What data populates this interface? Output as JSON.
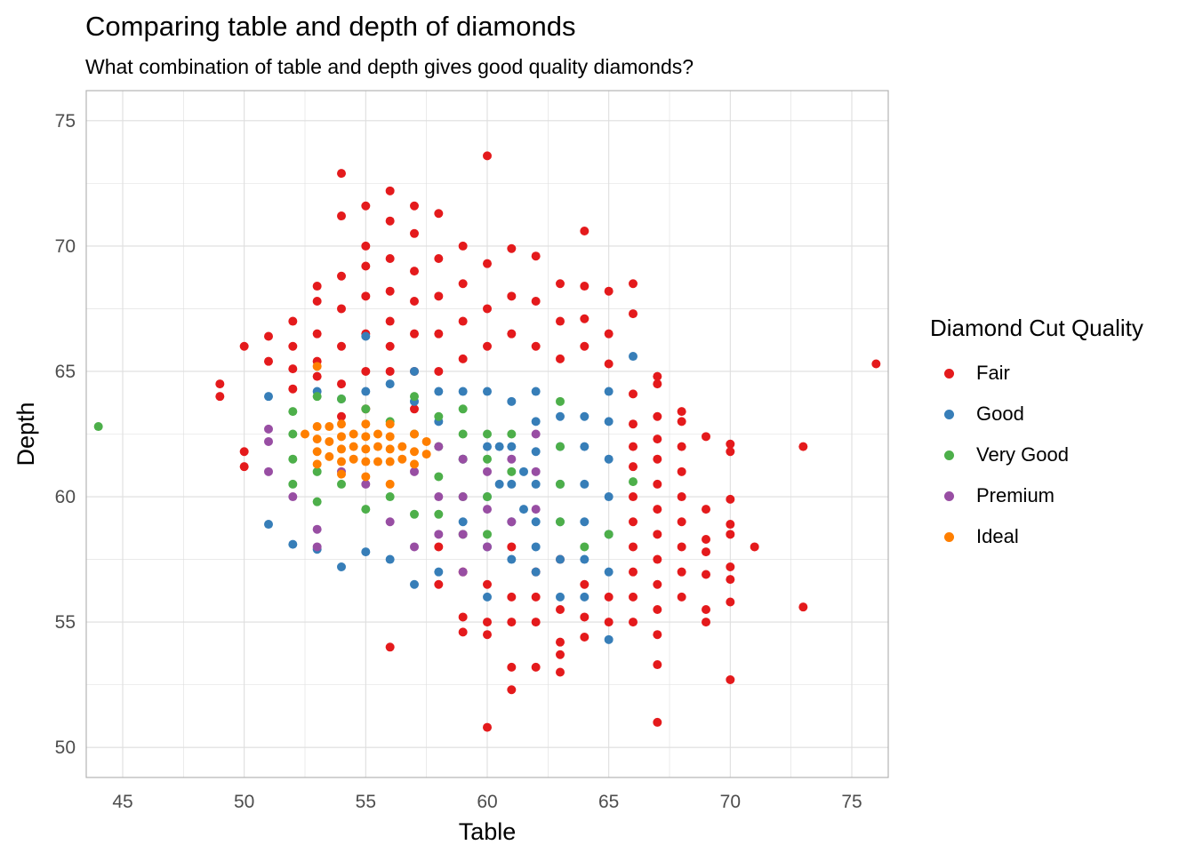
{
  "chart_data": {
    "type": "scatter",
    "title": "Comparing table and depth of diamonds",
    "subtitle": "What combination of table and depth gives good quality diamonds?",
    "xlabel": "Table",
    "ylabel": "Depth",
    "xlim": [
      43.5,
      76.5
    ],
    "ylim": [
      48.8,
      76.2
    ],
    "xticks": [
      45,
      50,
      55,
      60,
      65,
      70,
      75
    ],
    "yticks": [
      50,
      55,
      60,
      65,
      70,
      75
    ],
    "grid": true,
    "legend_title": "Diamond Cut Quality",
    "legend_position": "right",
    "series": [
      {
        "name": "Fair",
        "color": "#E41A1C",
        "points": [
          [
            49,
            64.5
          ],
          [
            49,
            64.0
          ],
          [
            50,
            66.0
          ],
          [
            50,
            61.8
          ],
          [
            50,
            61.2
          ],
          [
            51,
            66.4
          ],
          [
            51,
            65.4
          ],
          [
            52,
            67.0
          ],
          [
            52,
            66.0
          ],
          [
            52,
            65.1
          ],
          [
            52,
            64.3
          ],
          [
            53,
            68.4
          ],
          [
            53,
            67.8
          ],
          [
            53,
            66.5
          ],
          [
            53,
            65.4
          ],
          [
            53,
            64.8
          ],
          [
            54,
            72.9
          ],
          [
            54,
            71.2
          ],
          [
            54,
            68.8
          ],
          [
            54,
            67.5
          ],
          [
            54,
            66.0
          ],
          [
            54,
            64.5
          ],
          [
            54,
            63.2
          ],
          [
            55,
            71.6
          ],
          [
            55,
            70.0
          ],
          [
            55,
            69.2
          ],
          [
            55,
            68.0
          ],
          [
            55,
            66.5
          ],
          [
            55,
            65.0
          ],
          [
            55,
            63.5
          ],
          [
            56,
            72.2
          ],
          [
            56,
            71.0
          ],
          [
            56,
            69.5
          ],
          [
            56,
            68.2
          ],
          [
            56,
            67.0
          ],
          [
            56,
            66.0
          ],
          [
            56,
            65.0
          ],
          [
            56,
            54.0
          ],
          [
            57,
            71.6
          ],
          [
            57,
            70.5
          ],
          [
            57,
            69.0
          ],
          [
            57,
            67.8
          ],
          [
            57,
            66.5
          ],
          [
            57,
            65.0
          ],
          [
            57,
            63.5
          ],
          [
            58,
            71.3
          ],
          [
            58,
            69.5
          ],
          [
            58,
            68.0
          ],
          [
            58,
            66.5
          ],
          [
            58,
            65.0
          ],
          [
            58,
            58.0
          ],
          [
            58,
            56.5
          ],
          [
            59,
            70.0
          ],
          [
            59,
            68.5
          ],
          [
            59,
            67.0
          ],
          [
            59,
            65.5
          ],
          [
            59,
            57.0
          ],
          [
            59,
            55.2
          ],
          [
            59,
            54.6
          ],
          [
            60,
            73.6
          ],
          [
            60,
            69.3
          ],
          [
            60,
            67.5
          ],
          [
            60,
            66.0
          ],
          [
            60,
            56.5
          ],
          [
            60,
            55.0
          ],
          [
            60,
            54.5
          ],
          [
            60,
            50.8
          ],
          [
            61,
            69.9
          ],
          [
            61,
            68.0
          ],
          [
            61,
            66.5
          ],
          [
            61,
            58.0
          ],
          [
            61,
            56.0
          ],
          [
            61,
            55.0
          ],
          [
            61,
            53.2
          ],
          [
            61,
            52.3
          ],
          [
            62,
            69.6
          ],
          [
            62,
            67.8
          ],
          [
            62,
            66.0
          ],
          [
            62,
            57.0
          ],
          [
            62,
            56.0
          ],
          [
            62,
            55.0
          ],
          [
            62,
            53.2
          ],
          [
            63,
            68.5
          ],
          [
            63,
            67.0
          ],
          [
            63,
            65.5
          ],
          [
            63,
            57.5
          ],
          [
            63,
            55.5
          ],
          [
            63,
            54.2
          ],
          [
            63,
            53.7
          ],
          [
            63,
            53.0
          ],
          [
            64,
            70.6
          ],
          [
            64,
            68.4
          ],
          [
            64,
            67.1
          ],
          [
            64,
            66.0
          ],
          [
            64,
            56.5
          ],
          [
            64,
            55.2
          ],
          [
            64,
            54.4
          ],
          [
            65,
            68.2
          ],
          [
            65,
            66.5
          ],
          [
            65,
            65.3
          ],
          [
            65,
            56.0
          ],
          [
            65,
            55.0
          ],
          [
            66,
            68.5
          ],
          [
            66,
            67.3
          ],
          [
            66,
            64.1
          ],
          [
            66,
            62.9
          ],
          [
            66,
            62.0
          ],
          [
            66,
            61.2
          ],
          [
            66,
            60.0
          ],
          [
            66,
            59.0
          ],
          [
            66,
            58.0
          ],
          [
            66,
            57.0
          ],
          [
            66,
            56.0
          ],
          [
            66,
            55.0
          ],
          [
            67,
            64.8
          ],
          [
            67,
            64.5
          ],
          [
            67,
            63.2
          ],
          [
            67,
            62.3
          ],
          [
            67,
            61.5
          ],
          [
            67,
            60.5
          ],
          [
            67,
            59.5
          ],
          [
            67,
            58.5
          ],
          [
            67,
            57.5
          ],
          [
            67,
            56.5
          ],
          [
            67,
            55.5
          ],
          [
            67,
            54.5
          ],
          [
            67,
            53.3
          ],
          [
            67,
            51.0
          ],
          [
            68,
            63.4
          ],
          [
            68,
            63.0
          ],
          [
            68,
            62.0
          ],
          [
            68,
            61.0
          ],
          [
            68,
            60.0
          ],
          [
            68,
            59.0
          ],
          [
            68,
            58.0
          ],
          [
            68,
            57.0
          ],
          [
            68,
            56.0
          ],
          [
            69,
            62.4
          ],
          [
            69,
            59.5
          ],
          [
            69,
            58.3
          ],
          [
            69,
            57.8
          ],
          [
            69,
            56.9
          ],
          [
            69,
            55.5
          ],
          [
            69,
            55.0
          ],
          [
            70,
            62.1
          ],
          [
            70,
            61.8
          ],
          [
            70,
            59.9
          ],
          [
            70,
            58.9
          ],
          [
            70,
            58.5
          ],
          [
            70,
            57.2
          ],
          [
            70,
            56.7
          ],
          [
            70,
            55.8
          ],
          [
            70,
            52.7
          ],
          [
            71,
            58.0
          ],
          [
            73,
            62.0
          ],
          [
            73,
            55.6
          ],
          [
            76,
            65.3
          ]
        ]
      },
      {
        "name": "Good",
        "color": "#377EB8",
        "points": [
          [
            51,
            64.0
          ],
          [
            51,
            58.9
          ],
          [
            52,
            58.1
          ],
          [
            53,
            64.2
          ],
          [
            53,
            57.9
          ],
          [
            54,
            63.9
          ],
          [
            54,
            57.2
          ],
          [
            55,
            66.4
          ],
          [
            55,
            64.2
          ],
          [
            55,
            57.8
          ],
          [
            56,
            64.5
          ],
          [
            56,
            57.5
          ],
          [
            57,
            65.0
          ],
          [
            57,
            63.8
          ],
          [
            57,
            56.5
          ],
          [
            58,
            64.2
          ],
          [
            58,
            63.0
          ],
          [
            58,
            57.0
          ],
          [
            59,
            64.2
          ],
          [
            59,
            61.5
          ],
          [
            59,
            59.0
          ],
          [
            60,
            64.2
          ],
          [
            60,
            62.0
          ],
          [
            60,
            60.0
          ],
          [
            60,
            58.0
          ],
          [
            60,
            56.0
          ],
          [
            60.5,
            62.0
          ],
          [
            60.5,
            60.5
          ],
          [
            61,
            63.8
          ],
          [
            61,
            62.0
          ],
          [
            61,
            60.5
          ],
          [
            61,
            59.0
          ],
          [
            61,
            57.5
          ],
          [
            61.5,
            61.0
          ],
          [
            61.5,
            59.5
          ],
          [
            62,
            64.2
          ],
          [
            62,
            63.0
          ],
          [
            62,
            61.8
          ],
          [
            62,
            60.5
          ],
          [
            62,
            59.0
          ],
          [
            62,
            58.0
          ],
          [
            62,
            57.0
          ],
          [
            63,
            63.2
          ],
          [
            63,
            62.0
          ],
          [
            63,
            60.5
          ],
          [
            63,
            59.0
          ],
          [
            63,
            57.5
          ],
          [
            63,
            56.0
          ],
          [
            64,
            63.2
          ],
          [
            64,
            62.0
          ],
          [
            64,
            60.5
          ],
          [
            64,
            59.0
          ],
          [
            64,
            57.5
          ],
          [
            64,
            56.0
          ],
          [
            65,
            64.2
          ],
          [
            65,
            63.0
          ],
          [
            65,
            61.5
          ],
          [
            65,
            60.0
          ],
          [
            65,
            58.5
          ],
          [
            65,
            57.0
          ],
          [
            65,
            54.3
          ],
          [
            66,
            65.6
          ]
        ]
      },
      {
        "name": "Very Good",
        "color": "#4DAF4A",
        "points": [
          [
            44,
            62.8
          ],
          [
            52,
            63.4
          ],
          [
            52,
            62.5
          ],
          [
            52,
            61.5
          ],
          [
            52,
            60.5
          ],
          [
            53,
            64.0
          ],
          [
            53,
            61.0
          ],
          [
            53,
            59.8
          ],
          [
            54,
            63.9
          ],
          [
            54,
            60.5
          ],
          [
            55,
            63.5
          ],
          [
            55,
            59.5
          ],
          [
            56,
            63.0
          ],
          [
            56,
            60.0
          ],
          [
            57,
            64.0
          ],
          [
            57,
            62.5
          ],
          [
            57,
            59.3
          ],
          [
            58,
            63.2
          ],
          [
            58,
            62.0
          ],
          [
            58,
            60.8
          ],
          [
            58,
            59.3
          ],
          [
            59,
            63.5
          ],
          [
            59,
            62.5
          ],
          [
            59,
            61.5
          ],
          [
            59,
            60.0
          ],
          [
            59,
            58.5
          ],
          [
            60,
            62.5
          ],
          [
            60,
            61.5
          ],
          [
            60,
            60.0
          ],
          [
            60,
            58.5
          ],
          [
            61,
            62.5
          ],
          [
            61,
            61.0
          ],
          [
            63,
            63.8
          ],
          [
            63,
            62.0
          ],
          [
            63,
            60.5
          ],
          [
            63,
            59.0
          ],
          [
            64,
            58.0
          ],
          [
            65,
            58.5
          ],
          [
            66,
            60.6
          ]
        ]
      },
      {
        "name": "Premium",
        "color": "#984EA3",
        "points": [
          [
            51,
            62.7
          ],
          [
            51,
            62.2
          ],
          [
            51,
            61.0
          ],
          [
            52,
            60.0
          ],
          [
            53,
            58.7
          ],
          [
            53,
            58.0
          ],
          [
            54,
            61.0
          ],
          [
            55,
            60.5
          ],
          [
            56,
            59.0
          ],
          [
            57,
            61.0
          ],
          [
            57,
            58.0
          ],
          [
            58,
            62.0
          ],
          [
            58,
            60.0
          ],
          [
            58,
            58.5
          ],
          [
            59,
            61.5
          ],
          [
            59,
            60.0
          ],
          [
            59,
            58.5
          ],
          [
            59,
            57.0
          ],
          [
            60,
            61.0
          ],
          [
            60,
            59.5
          ],
          [
            60,
            58.0
          ],
          [
            61,
            61.5
          ],
          [
            61,
            59.0
          ],
          [
            62,
            62.5
          ],
          [
            62,
            61.0
          ],
          [
            62,
            59.5
          ]
        ]
      },
      {
        "name": "Ideal",
        "color": "#FF7F00",
        "points": [
          [
            52.5,
            62.5
          ],
          [
            53,
            65.2
          ],
          [
            53,
            62.8
          ],
          [
            53,
            62.3
          ],
          [
            53,
            61.8
          ],
          [
            53,
            61.3
          ],
          [
            53.5,
            62.8
          ],
          [
            53.5,
            62.2
          ],
          [
            53.5,
            61.6
          ],
          [
            54,
            62.9
          ],
          [
            54,
            62.4
          ],
          [
            54,
            61.9
          ],
          [
            54,
            61.4
          ],
          [
            54,
            60.9
          ],
          [
            54.5,
            62.5
          ],
          [
            54.5,
            62.0
          ],
          [
            54.5,
            61.5
          ],
          [
            55,
            62.9
          ],
          [
            55,
            62.4
          ],
          [
            55,
            61.9
          ],
          [
            55,
            61.4
          ],
          [
            55,
            60.8
          ],
          [
            55.5,
            62.5
          ],
          [
            55.5,
            62.0
          ],
          [
            55.5,
            61.4
          ],
          [
            56,
            62.9
          ],
          [
            56,
            62.4
          ],
          [
            56,
            61.9
          ],
          [
            56,
            61.4
          ],
          [
            56,
            60.5
          ],
          [
            56.5,
            62.0
          ],
          [
            56.5,
            61.5
          ],
          [
            57,
            62.5
          ],
          [
            57,
            61.8
          ],
          [
            57,
            61.3
          ],
          [
            57.5,
            62.2
          ],
          [
            57.5,
            61.7
          ]
        ]
      }
    ]
  }
}
